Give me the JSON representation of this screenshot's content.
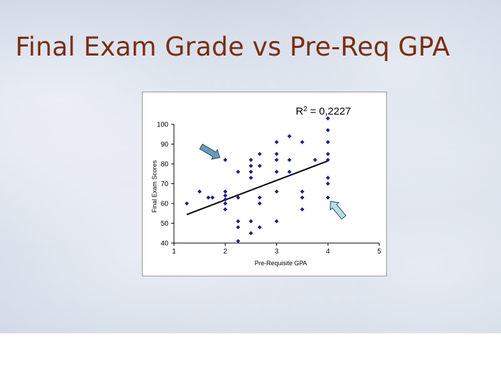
{
  "slide": {
    "title": "Final Exam Grade vs Pre-Req GPA"
  },
  "chart_data": {
    "type": "scatter",
    "title": "",
    "xlabel": "Pre-Requisite GPA",
    "ylabel": "Final Exam Scores",
    "xlim": [
      1,
      5
    ],
    "ylim": [
      40,
      100
    ],
    "xticks": [
      1,
      2,
      3,
      4,
      5
    ],
    "yticks": [
      40,
      50,
      60,
      70,
      80,
      90,
      100
    ],
    "grid": false,
    "annotation": {
      "r2_prefix": "R",
      "r2_exp": "2",
      "r2_value": " = 0,2227"
    },
    "trendline": {
      "x": [
        1.25,
        4.0
      ],
      "y": [
        54.4,
        81.5
      ]
    },
    "point_color": "#1f1f8c",
    "trend_color": "#000000",
    "arrow_color": "#6a9ab8",
    "arrow2_color": "#b9dde6",
    "points": [
      [
        1.25,
        60
      ],
      [
        1.5,
        66
      ],
      [
        1.67,
        63
      ],
      [
        1.75,
        63
      ],
      [
        2.0,
        82
      ],
      [
        2.0,
        66
      ],
      [
        2.0,
        64
      ],
      [
        2.0,
        62
      ],
      [
        2.0,
        60
      ],
      [
        2.0,
        57
      ],
      [
        2.25,
        76
      ],
      [
        2.25,
        63
      ],
      [
        2.25,
        51
      ],
      [
        2.25,
        48
      ],
      [
        2.25,
        41
      ],
      [
        2.5,
        82
      ],
      [
        2.5,
        79
      ],
      [
        2.5,
        76
      ],
      [
        2.5,
        73
      ],
      [
        2.5,
        51
      ],
      [
        2.5,
        45
      ],
      [
        2.67,
        85
      ],
      [
        2.67,
        79
      ],
      [
        2.67,
        63
      ],
      [
        2.67,
        60
      ],
      [
        2.67,
        48
      ],
      [
        3.0,
        91
      ],
      [
        3.0,
        85
      ],
      [
        3.0,
        82
      ],
      [
        3.0,
        76
      ],
      [
        3.0,
        66
      ],
      [
        3.0,
        51
      ],
      [
        3.25,
        94
      ],
      [
        3.25,
        82
      ],
      [
        3.25,
        76
      ],
      [
        3.5,
        91
      ],
      [
        3.5,
        66
      ],
      [
        3.5,
        63
      ],
      [
        3.5,
        57
      ],
      [
        3.75,
        82
      ],
      [
        4.0,
        103
      ],
      [
        4.0,
        97
      ],
      [
        4.0,
        91
      ],
      [
        4.0,
        85
      ],
      [
        4.0,
        82
      ],
      [
        4.0,
        73
      ],
      [
        4.0,
        70
      ],
      [
        4.0,
        63
      ]
    ]
  }
}
